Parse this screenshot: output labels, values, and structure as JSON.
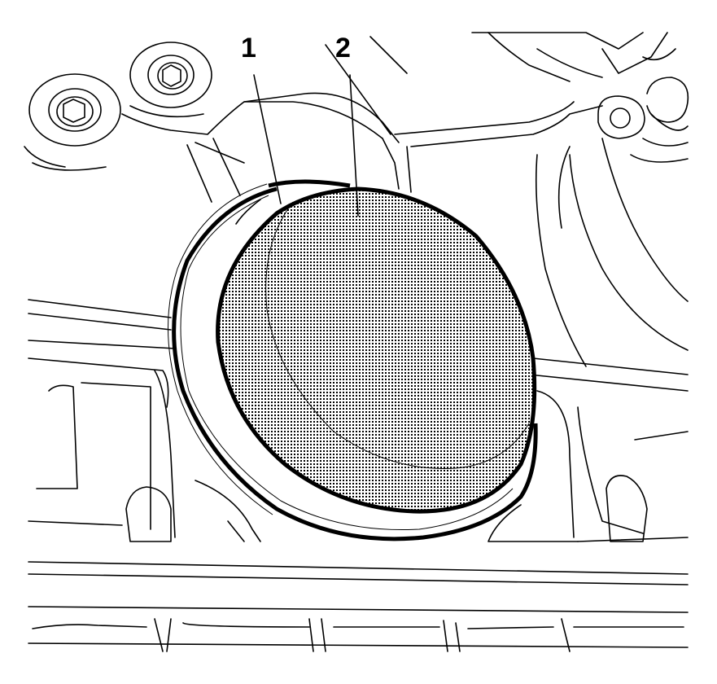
{
  "diagram": {
    "callouts": [
      {
        "id": "callout-1",
        "label": "1"
      },
      {
        "id": "callout-2",
        "label": "2"
      }
    ],
    "colors": {
      "line": "#000000",
      "background": "#ffffff",
      "seal_fill_dots": "#000000"
    }
  }
}
